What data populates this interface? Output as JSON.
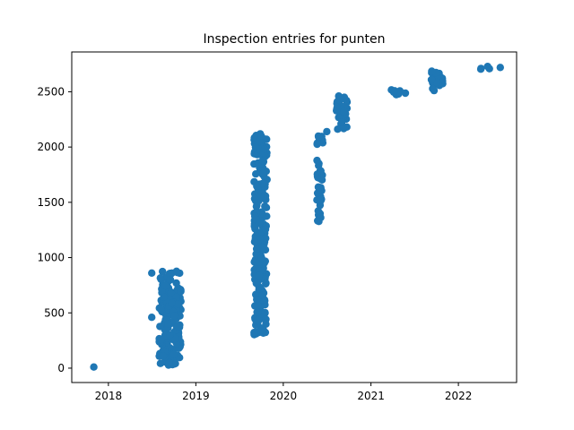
{
  "chart_data": {
    "type": "scatter",
    "title": "Inspection entries for punten",
    "xlabel": "",
    "ylabel": "",
    "x_axis_type": "date",
    "xlim": [
      "2017-08-01",
      "2022-09-01"
    ],
    "ylim": [
      -130,
      2860
    ],
    "x_ticks": [
      {
        "value": "2018-01-01",
        "label": "2018"
      },
      {
        "value": "2019-01-01",
        "label": "2019"
      },
      {
        "value": "2020-01-01",
        "label": "2020"
      },
      {
        "value": "2021-01-01",
        "label": "2021"
      },
      {
        "value": "2022-01-01",
        "label": "2022"
      }
    ],
    "y_ticks": [
      {
        "value": 0,
        "label": "0"
      },
      {
        "value": 500,
        "label": "500"
      },
      {
        "value": 1000,
        "label": "1000"
      },
      {
        "value": 1500,
        "label": "1500"
      },
      {
        "value": 2000,
        "label": "2000"
      },
      {
        "value": 2500,
        "label": "2500"
      }
    ],
    "grid": false,
    "series": [
      {
        "color": "#1f77b4",
        "clusters": [
          {
            "x_start": "2017-10-25",
            "x_end": "2017-11-05",
            "y_min": 0,
            "y_max": 20
          },
          {
            "x_start": "2018-07-01",
            "x_end": "2018-07-01",
            "y_min": 460,
            "y_max": 460
          },
          {
            "x_start": "2018-07-01",
            "x_end": "2018-07-01",
            "y_min": 860,
            "y_max": 860
          },
          {
            "x_start": "2018-08-01",
            "x_end": "2018-10-31",
            "y_min": 20,
            "y_max": 880
          },
          {
            "x_start": "2019-09-01",
            "x_end": "2019-10-25",
            "y_min": 300,
            "y_max": 2140
          },
          {
            "x_start": "2020-05-20",
            "x_end": "2020-06-10",
            "y_min": 1320,
            "y_max": 1660
          },
          {
            "x_start": "2020-05-20",
            "x_end": "2020-06-15",
            "y_min": 1700,
            "y_max": 1900
          },
          {
            "x_start": "2020-05-20",
            "x_end": "2020-06-15",
            "y_min": 1950,
            "y_max": 2100
          },
          {
            "x_start": "2020-06-30",
            "x_end": "2020-07-05",
            "y_min": 2140,
            "y_max": 2140
          },
          {
            "x_start": "2020-08-10",
            "x_end": "2020-09-25",
            "y_min": 2150,
            "y_max": 2470
          },
          {
            "x_start": "2021-03-10",
            "x_end": "2021-05-31",
            "y_min": 2470,
            "y_max": 2520
          },
          {
            "x_start": "2021-09-10",
            "x_end": "2021-10-31",
            "y_min": 2510,
            "y_max": 2700
          },
          {
            "x_start": "2022-04-01",
            "x_end": "2022-05-25",
            "y_min": 2700,
            "y_max": 2730
          },
          {
            "x_start": "2022-06-25",
            "x_end": "2022-06-25",
            "y_min": 2720,
            "y_max": 2720
          }
        ]
      }
    ]
  }
}
